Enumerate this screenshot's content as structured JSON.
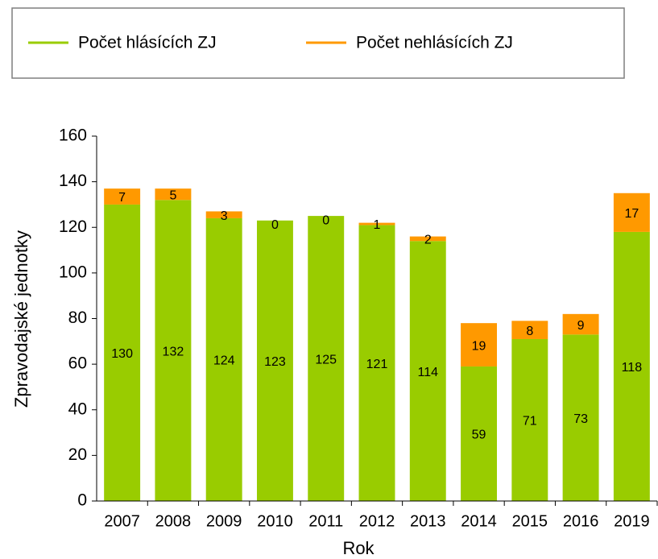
{
  "chart_data": {
    "type": "stacked_bar",
    "x_label": "Rok",
    "y_label": "Zpravodajské jednotky",
    "categories": [
      "2007",
      "2008",
      "2009",
      "2010",
      "2011",
      "2012",
      "2013",
      "2014",
      "2015",
      "2016",
      "2019"
    ],
    "series": [
      {
        "name": "Počet hlásících ZJ",
        "color": "#99cc00",
        "values": [
          130,
          132,
          124,
          123,
          125,
          121,
          114,
          59,
          71,
          73,
          118
        ]
      },
      {
        "name": "Počet nehlásících ZJ",
        "color": "#ff9900",
        "values": [
          7,
          5,
          3,
          0,
          0,
          1,
          2,
          19,
          8,
          9,
          17
        ]
      }
    ],
    "ylim": [
      0,
      160
    ],
    "yticks": [
      0,
      20,
      40,
      60,
      80,
      100,
      120,
      140,
      160
    ],
    "grid": false,
    "legend": "top"
  }
}
